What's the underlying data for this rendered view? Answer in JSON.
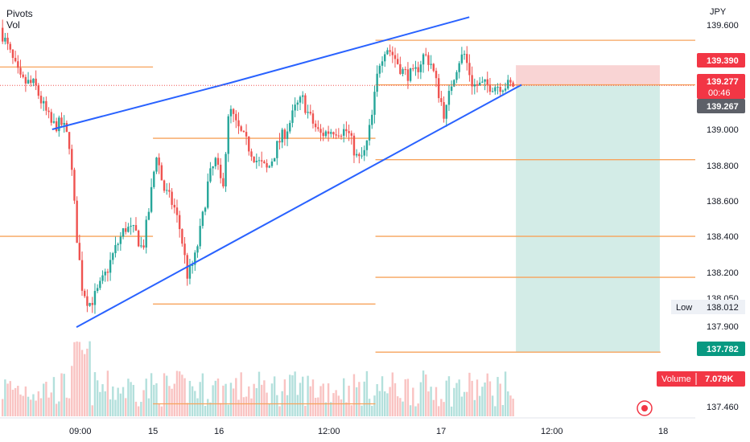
{
  "legend": {
    "pivots": "Pivots",
    "vol": "Vol"
  },
  "currency": "JPY",
  "price_axis": {
    "ticks": [
      "139.600",
      "139.000",
      "138.800",
      "138.600",
      "138.400",
      "138.200",
      "138.050",
      "137.900",
      "137.460"
    ]
  },
  "time_axis": {
    "labels": [
      "09:00",
      "15",
      "16",
      "12:00",
      "17",
      "12:00",
      "18"
    ]
  },
  "badges": {
    "sell_target": "139.390",
    "last_price": "139.277",
    "countdown": "00:46",
    "prev_price": "139.267",
    "low_label": "Low",
    "low_value": "138.012",
    "target_price": "137.782",
    "volume_label": "Volume",
    "volume_value": "7.079K"
  },
  "colors": {
    "up": "#26a69a",
    "down": "#ef5350",
    "pivot": "#f7a35c",
    "trendline": "#2962ff",
    "stop_zone": "#f9d4d4",
    "target_zone": "#d3ece7",
    "target_badge": "#089981",
    "price_badge": "#f23645",
    "axis_badge": "#5d6068"
  },
  "chart_data": {
    "type": "candlestick",
    "instrument_currency": "JPY",
    "y_axis_ticks": [
      139.6,
      139.0,
      138.8,
      138.6,
      138.4,
      138.2,
      138.05,
      137.9,
      137.46
    ],
    "ylim": [
      137.42,
      139.72
    ],
    "x_axis_labels": [
      "09:00",
      "15",
      "16",
      "12:00",
      "17",
      "12:00",
      "18"
    ],
    "last_price": 139.277,
    "previous_price": 139.267,
    "session_low": 138.012,
    "short_position": {
      "stop": 139.39,
      "entry": 139.277,
      "target": 137.782
    },
    "pivot_levels": [
      139.53,
      139.38,
      139.28,
      138.98,
      138.86,
      138.43,
      138.2,
      138.05,
      137.78,
      137.49
    ],
    "trendlines": [
      {
        "name": "upper",
        "points": [
          [
            0.075,
            139.03
          ],
          [
            0.33,
            139.29
          ],
          [
            0.675,
            139.66
          ]
        ]
      },
      {
        "name": "lower",
        "points": [
          [
            0.11,
            137.92
          ],
          [
            0.75,
            139.28
          ]
        ]
      }
    ],
    "volume_last": "7.079K",
    "price_path": [
      [
        0.0,
        139.6
      ],
      [
        0.03,
        139.3
      ],
      [
        0.05,
        139.28
      ],
      [
        0.06,
        139.18
      ],
      [
        0.075,
        139.05
      ],
      [
        0.09,
        139.06
      ],
      [
        0.1,
        138.95
      ],
      [
        0.11,
        138.45
      ],
      [
        0.118,
        138.15
      ],
      [
        0.128,
        138.05
      ],
      [
        0.138,
        138.1
      ],
      [
        0.15,
        138.2
      ],
      [
        0.165,
        138.35
      ],
      [
        0.18,
        138.48
      ],
      [
        0.195,
        138.45
      ],
      [
        0.205,
        138.35
      ],
      [
        0.215,
        138.6
      ],
      [
        0.225,
        138.9
      ],
      [
        0.235,
        138.7
      ],
      [
        0.25,
        138.6
      ],
      [
        0.26,
        138.45
      ],
      [
        0.27,
        138.2
      ],
      [
        0.28,
        138.3
      ],
      [
        0.29,
        138.5
      ],
      [
        0.3,
        138.75
      ],
      [
        0.31,
        138.85
      ],
      [
        0.32,
        138.7
      ],
      [
        0.33,
        139.15
      ],
      [
        0.34,
        139.05
      ],
      [
        0.355,
        138.95
      ],
      [
        0.37,
        138.85
      ],
      [
        0.385,
        138.8
      ],
      [
        0.4,
        138.95
      ],
      [
        0.415,
        139.05
      ],
      [
        0.425,
        139.15
      ],
      [
        0.435,
        139.2
      ],
      [
        0.445,
        139.1
      ],
      [
        0.46,
        139.0
      ],
      [
        0.48,
        139.03
      ],
      [
        0.5,
        139.02
      ],
      [
        0.515,
        138.85
      ],
      [
        0.525,
        138.9
      ],
      [
        0.535,
        139.1
      ],
      [
        0.545,
        139.4
      ],
      [
        0.555,
        139.5
      ],
      [
        0.565,
        139.45
      ],
      [
        0.58,
        139.35
      ],
      [
        0.595,
        139.33
      ],
      [
        0.61,
        139.45
      ],
      [
        0.62,
        139.4
      ],
      [
        0.63,
        139.25
      ],
      [
        0.64,
        139.1
      ],
      [
        0.65,
        139.3
      ],
      [
        0.66,
        139.42
      ],
      [
        0.668,
        139.45
      ],
      [
        0.675,
        139.35
      ],
      [
        0.68,
        139.277
      ]
    ]
  }
}
